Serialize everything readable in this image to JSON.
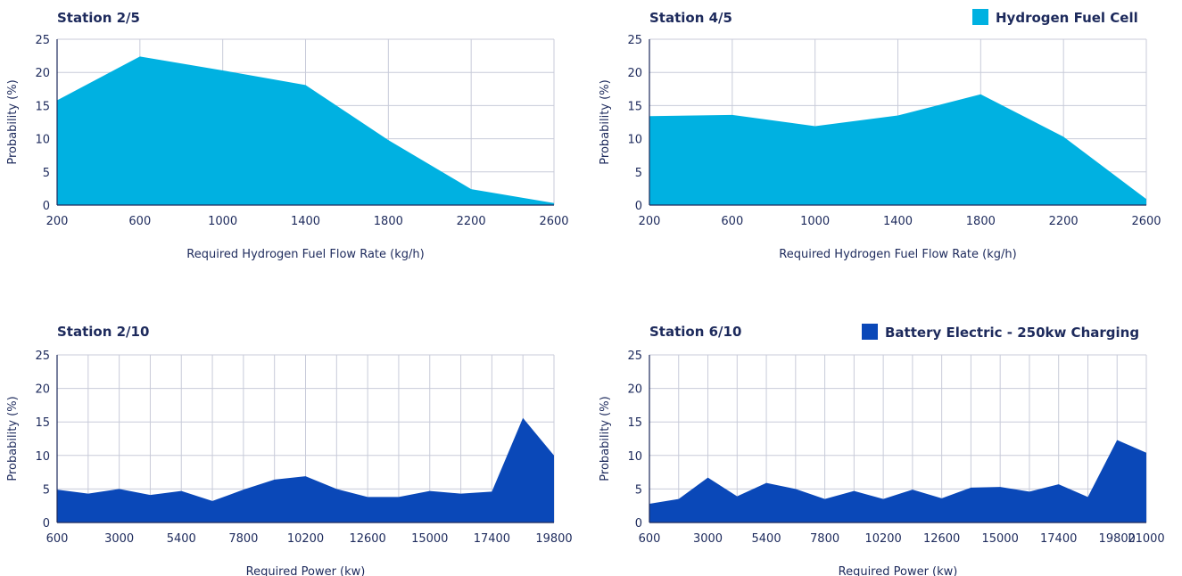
{
  "legends": {
    "hydrogen": {
      "label": "Hydrogen Fuel Cell",
      "color": "#00b1e1"
    },
    "battery": {
      "label": "Battery Electric - 250kw Charging",
      "color": "#0a48b8"
    }
  },
  "chart_data": [
    {
      "type": "area",
      "title": "Station 2/5",
      "xlabel": "Required Hydrogen Fuel Flow Rate (kg/h)",
      "ylabel": "Probability (%)",
      "ylim": [
        0,
        25
      ],
      "xlim": [
        200,
        2600
      ],
      "yticks": [
        0,
        5,
        10,
        15,
        20,
        25
      ],
      "xticks": [
        200,
        600,
        1000,
        1400,
        1800,
        2200,
        2600
      ],
      "grid": true,
      "color": "#00b1e1",
      "x": [
        200,
        600,
        1000,
        1400,
        1800,
        2200,
        2600
      ],
      "y": [
        15.8,
        22.4,
        20.3,
        18.1,
        9.8,
        2.4,
        0.3
      ]
    },
    {
      "type": "area",
      "title": "Station 4/5",
      "xlabel": "Required Hydrogen Fuel Flow Rate (kg/h)",
      "ylabel": "Probability (%)",
      "ylim": [
        0,
        25
      ],
      "xlim": [
        200,
        2600
      ],
      "yticks": [
        0,
        5,
        10,
        15,
        20,
        25
      ],
      "xticks": [
        200,
        600,
        1000,
        1400,
        1800,
        2200,
        2600
      ],
      "grid": true,
      "color": "#00b1e1",
      "x": [
        200,
        600,
        1000,
        1400,
        1800,
        2200,
        2600
      ],
      "y": [
        13.4,
        13.6,
        11.9,
        13.5,
        16.7,
        10.3,
        0.9
      ]
    },
    {
      "type": "area",
      "title": "Station 2/10",
      "xlabel": "Required Power (kw)",
      "ylabel": "Probability (%)",
      "ylim": [
        0,
        25
      ],
      "xlim": [
        600,
        19800
      ],
      "yticks": [
        0,
        5,
        10,
        15,
        20,
        25
      ],
      "xticks": [
        600,
        3000,
        5400,
        7800,
        10200,
        12600,
        15000,
        17400,
        19800
      ],
      "grid": true,
      "color": "#0a48b8",
      "x": [
        600,
        1800,
        3000,
        4200,
        5400,
        6600,
        7800,
        9000,
        10200,
        11400,
        12600,
        13800,
        15000,
        16200,
        17400,
        18600,
        19800
      ],
      "y": [
        4.9,
        4.3,
        5.0,
        4.1,
        4.7,
        3.2,
        4.9,
        6.4,
        6.9,
        5.0,
        3.8,
        3.8,
        4.7,
        4.3,
        4.6,
        15.6,
        10.0
      ]
    },
    {
      "type": "area",
      "title": "Station 6/10",
      "xlabel": "Required Power (kw)",
      "ylabel": "Probability (%)",
      "ylim": [
        0,
        25
      ],
      "xlim": [
        600,
        21000
      ],
      "yticks": [
        0,
        5,
        10,
        15,
        20,
        25
      ],
      "xticks": [
        600,
        3000,
        5400,
        7800,
        10200,
        12600,
        15000,
        17400,
        19800,
        21000
      ],
      "grid": true,
      "color": "#0a48b8",
      "x": [
        600,
        1800,
        3000,
        4200,
        5400,
        6600,
        7800,
        9000,
        10200,
        11400,
        12600,
        13800,
        15000,
        16200,
        17400,
        18600,
        19800,
        21000
      ],
      "y": [
        2.8,
        3.5,
        6.7,
        3.9,
        5.9,
        5.0,
        3.5,
        4.7,
        3.5,
        4.9,
        3.6,
        5.2,
        5.3,
        4.6,
        5.7,
        3.8,
        12.3,
        10.4
      ]
    }
  ]
}
